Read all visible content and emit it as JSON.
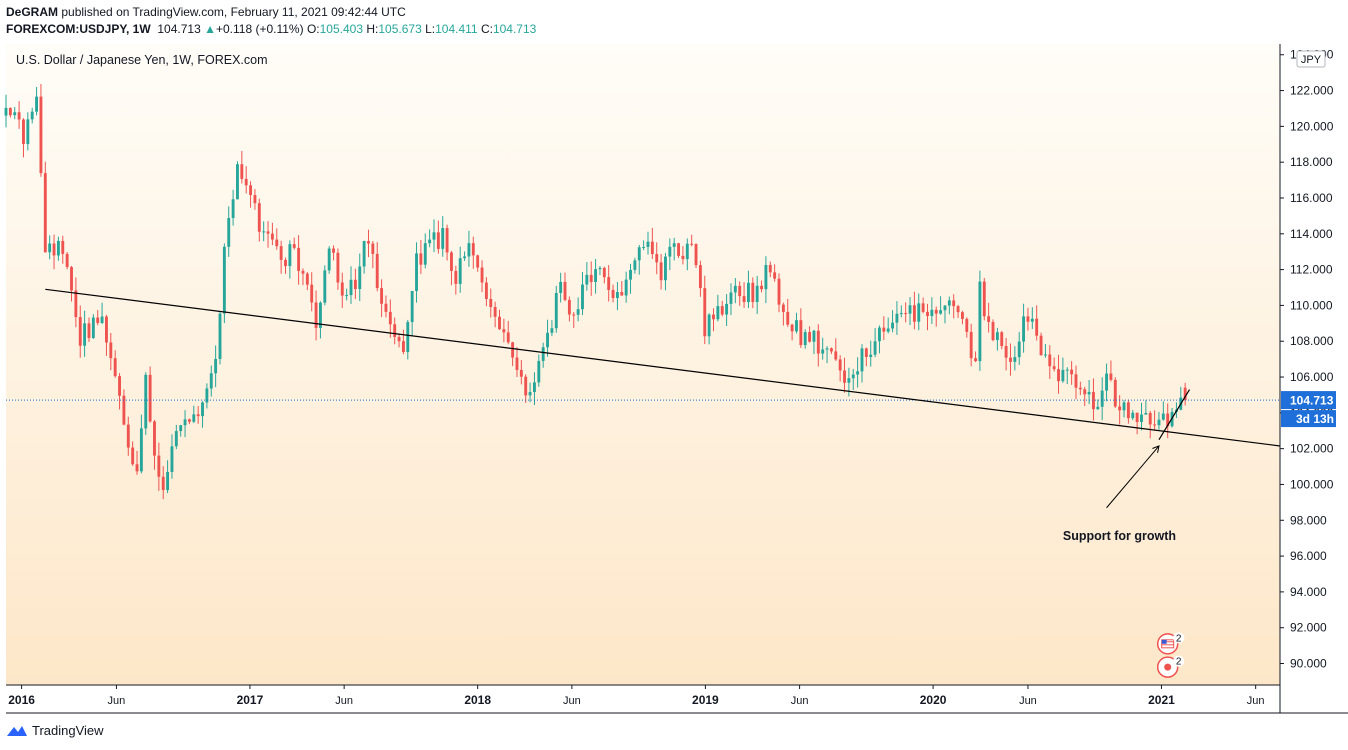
{
  "header": {
    "author": "DeGRAM",
    "published": "published on TradingView.com, February 11, 2021 09:42:44 UTC",
    "symbol": "FOREXCOM:USDJPY, 1W",
    "last": "104.713",
    "change_arrow": "▲",
    "change": "+0.118 (+0.11%)",
    "o_label": "O:",
    "o": "105.403",
    "h_label": "H:",
    "h": "105.673",
    "l_label": "L:",
    "l": "104.411",
    "c_label": "C:",
    "c": "104.713"
  },
  "footer": {
    "brand": "TradingView",
    "logo_icon": "tradingview-logo-icon"
  },
  "colors": {
    "up": "#26a69a",
    "down": "#ef5350",
    "line": "#000000",
    "price_tag": "#1e6fd9",
    "bg_top": "#fffdf8",
    "bg_bottom": "#fde7c9"
  },
  "chart_data": {
    "type": "candlestick",
    "title": "U.S. Dollar / Japanese Yen, 1W, FOREX.com",
    "currency": "JPY",
    "ylim": [
      88.8,
      124.6
    ],
    "y_ticks": [
      "124.000",
      "122.000",
      "120.000",
      "118.000",
      "116.000",
      "114.000",
      "112.000",
      "110.000",
      "108.000",
      "106.000",
      "104.000",
      "102.000",
      "100.000",
      "98.000",
      "96.000",
      "94.000",
      "92.000",
      "90.000"
    ],
    "y_tick_values": [
      124,
      122,
      120,
      118,
      116,
      114,
      112,
      110,
      108,
      106,
      104,
      102,
      100,
      98,
      96,
      94,
      92,
      90
    ],
    "x_range": [
      "2015-12-07",
      "2021-07-10"
    ],
    "x_ticks": [
      {
        "date": "2016-01-01",
        "label": "2016",
        "bold": true
      },
      {
        "date": "2016-06-01",
        "label": "Jun",
        "bold": false
      },
      {
        "date": "2017-01-01",
        "label": "2017",
        "bold": true
      },
      {
        "date": "2017-06-01",
        "label": "Jun",
        "bold": false
      },
      {
        "date": "2018-01-01",
        "label": "2018",
        "bold": true
      },
      {
        "date": "2018-06-01",
        "label": "Jun",
        "bold": false
      },
      {
        "date": "2019-01-01",
        "label": "2019",
        "bold": true
      },
      {
        "date": "2019-06-01",
        "label": "Jun",
        "bold": false
      },
      {
        "date": "2020-01-01",
        "label": "2020",
        "bold": true
      },
      {
        "date": "2020-06-01",
        "label": "Jun",
        "bold": false
      },
      {
        "date": "2021-01-01",
        "label": "2021",
        "bold": true
      },
      {
        "date": "2021-06-01",
        "label": "Jun",
        "bold": false
      }
    ],
    "close_path": [
      [
        "2015-12-07",
        121.0
      ],
      [
        "2016-01-04",
        119.5
      ],
      [
        "2016-01-25",
        121.1
      ],
      [
        "2016-02-08",
        113.2
      ],
      [
        "2016-03-07",
        113.0
      ],
      [
        "2016-04-04",
        108.0
      ],
      [
        "2016-05-02",
        109.5
      ],
      [
        "2016-05-30",
        106.7
      ],
      [
        "2016-06-20",
        102.2
      ],
      [
        "2016-07-04",
        100.6
      ],
      [
        "2016-07-18",
        106.1
      ],
      [
        "2016-08-01",
        101.2
      ],
      [
        "2016-08-15",
        100.2
      ],
      [
        "2016-09-05",
        102.7
      ],
      [
        "2016-10-10",
        103.9
      ],
      [
        "2016-11-07",
        106.7
      ],
      [
        "2016-11-21",
        113.3
      ],
      [
        "2016-12-12",
        117.9
      ],
      [
        "2016-12-26",
        117.0
      ],
      [
        "2017-01-16",
        114.6
      ],
      [
        "2017-02-20",
        112.2
      ],
      [
        "2017-03-13",
        113.3
      ],
      [
        "2017-04-03",
        111.0
      ],
      [
        "2017-04-17",
        109.1
      ],
      [
        "2017-05-08",
        113.4
      ],
      [
        "2017-05-29",
        110.4
      ],
      [
        "2017-06-19",
        111.3
      ],
      [
        "2017-07-10",
        113.9
      ],
      [
        "2017-08-07",
        109.2
      ],
      [
        "2017-09-04",
        108.0
      ],
      [
        "2017-09-25",
        112.6
      ],
      [
        "2017-11-06",
        113.9
      ],
      [
        "2017-11-27",
        111.5
      ],
      [
        "2017-12-18",
        113.3
      ],
      [
        "2018-01-08",
        111.0
      ],
      [
        "2018-02-05",
        108.5
      ],
      [
        "2018-03-05",
        106.5
      ],
      [
        "2018-03-26",
        105.0
      ],
      [
        "2018-04-16",
        107.8
      ],
      [
        "2018-05-14",
        110.8
      ],
      [
        "2018-06-04",
        109.5
      ],
      [
        "2018-07-09",
        112.4
      ],
      [
        "2018-07-30",
        111.2
      ],
      [
        "2018-08-20",
        110.5
      ],
      [
        "2018-09-10",
        112.0
      ],
      [
        "2018-10-01",
        113.8
      ],
      [
        "2018-10-22",
        112.0
      ],
      [
        "2018-11-12",
        113.0
      ],
      [
        "2018-12-10",
        113.4
      ],
      [
        "2018-12-31",
        108.8
      ],
      [
        "2019-01-21",
        109.5
      ],
      [
        "2019-02-18",
        110.7
      ],
      [
        "2019-03-18",
        110.8
      ],
      [
        "2019-04-15",
        111.9
      ],
      [
        "2019-05-13",
        109.4
      ],
      [
        "2019-06-03",
        108.2
      ],
      [
        "2019-07-08",
        107.9
      ],
      [
        "2019-08-05",
        105.9
      ],
      [
        "2019-08-26",
        106.4
      ],
      [
        "2019-09-16",
        107.6
      ],
      [
        "2019-10-14",
        108.4
      ],
      [
        "2019-11-04",
        109.2
      ],
      [
        "2019-12-09",
        109.5
      ],
      [
        "2020-01-13",
        110.1
      ],
      [
        "2020-02-10",
        109.8
      ],
      [
        "2020-02-24",
        107.9
      ],
      [
        "2020-03-09",
        107.0
      ],
      [
        "2020-03-16",
        110.8
      ],
      [
        "2020-03-30",
        108.6
      ],
      [
        "2020-05-04",
        106.9
      ],
      [
        "2020-06-01",
        109.6
      ],
      [
        "2020-06-22",
        107.0
      ],
      [
        "2020-07-27",
        105.9
      ],
      [
        "2020-08-17",
        105.6
      ],
      [
        "2020-09-14",
        104.5
      ],
      [
        "2020-10-05",
        105.6
      ],
      [
        "2020-10-26",
        104.6
      ],
      [
        "2020-11-16",
        103.9
      ],
      [
        "2020-12-14",
        103.3
      ],
      [
        "2021-01-04",
        103.9
      ],
      [
        "2021-01-18",
        103.8
      ],
      [
        "2021-02-01",
        105.4
      ],
      [
        "2021-02-08",
        104.713
      ]
    ],
    "last_price": 104.713,
    "last_price_label": "104.713",
    "countdown_label": "3d 13h",
    "trendlines": [
      {
        "name": "support-line",
        "from": [
          "2016-02-08",
          110.9
        ],
        "to": [
          "2021-07-10",
          102.15
        ]
      },
      {
        "name": "short-support-line",
        "from": [
          "2020-12-28",
          102.5
        ],
        "to": [
          "2021-02-15",
          105.3
        ]
      }
    ],
    "annotation": {
      "text": "Support for growth",
      "arrow_from": [
        "2020-10-05",
        98.7
      ],
      "arrow_to": [
        "2020-12-28",
        102.15
      ],
      "text_at": [
        "2020-07-27",
        96.9
      ]
    },
    "events": [
      {
        "name": "us-flag-event",
        "date": "2021-01-11",
        "y": 91.1,
        "count": "2"
      },
      {
        "name": "jp-flag-event",
        "date": "2021-01-11",
        "y": 89.8,
        "count": "2"
      }
    ]
  }
}
